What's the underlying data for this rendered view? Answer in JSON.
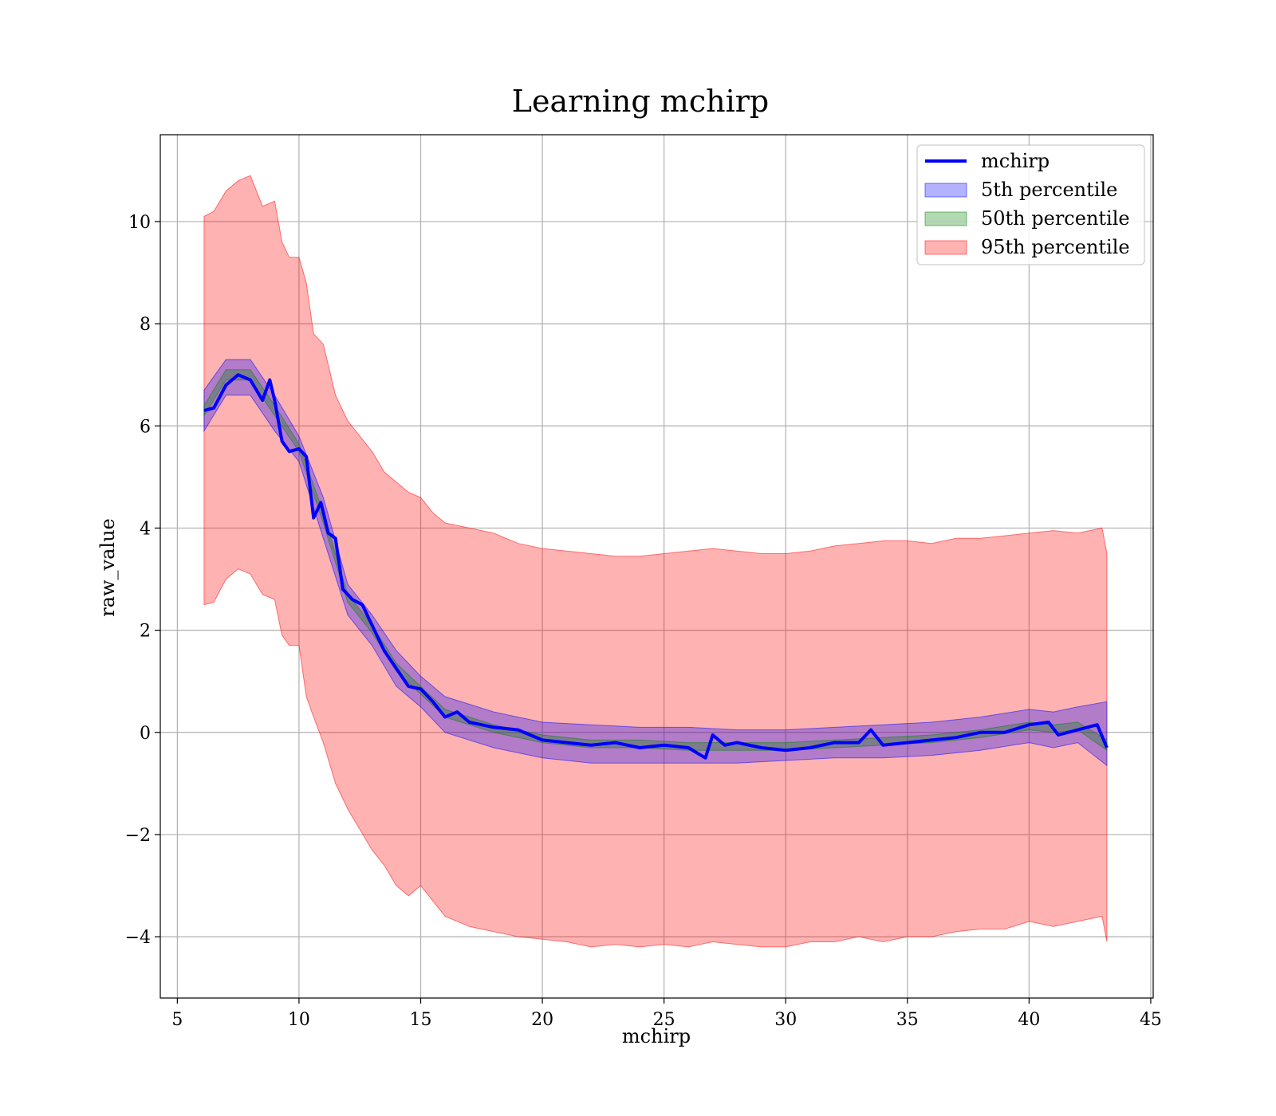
{
  "chart_data": {
    "type": "line",
    "title": "Learning mchirp",
    "xlabel": "mchirp",
    "ylabel": "raw_value",
    "xlim": [
      4.3,
      45.1
    ],
    "ylim": [
      -5.2,
      11.7
    ],
    "xticks": [
      5,
      10,
      15,
      20,
      25,
      30,
      35,
      40,
      45
    ],
    "xtick_labels": [
      "5",
      "10",
      "15",
      "20",
      "25",
      "30",
      "35",
      "40",
      "45"
    ],
    "yticks": [
      -4,
      -2,
      0,
      2,
      4,
      6,
      8,
      10
    ],
    "ytick_labels": [
      "−4",
      "−2",
      "0",
      "2",
      "4",
      "6",
      "8",
      "10"
    ],
    "grid": true,
    "legend": {
      "position": "top-right",
      "entries": [
        "mchirp",
        "5th percentile",
        "50th percentile",
        "95th percentile"
      ]
    },
    "colors": {
      "line": "#0000ff",
      "p5": "#0000ff",
      "p50": "#008000",
      "p95": "#ff0000"
    },
    "series": [
      {
        "name": "mchirp",
        "x": [
          6.1,
          6.5,
          7.0,
          7.5,
          8.0,
          8.5,
          8.8,
          9.0,
          9.3,
          9.6,
          10.0,
          10.3,
          10.6,
          10.9,
          11.2,
          11.5,
          11.8,
          12.2,
          12.6,
          13.0,
          13.5,
          14.0,
          14.5,
          15.0,
          15.5,
          16.0,
          16.5,
          17.0,
          17.5,
          18.0,
          19.0,
          20.0,
          21.0,
          22.0,
          23.0,
          24.0,
          25.0,
          26.0,
          26.7,
          27.0,
          27.5,
          28.0,
          29.0,
          30.0,
          31.0,
          32.0,
          33.0,
          33.5,
          34.0,
          35.0,
          36.0,
          37.0,
          38.0,
          39.0,
          40.0,
          40.8,
          41.2,
          42.0,
          42.8,
          43.2
        ],
        "y": [
          6.3,
          6.35,
          6.8,
          7.0,
          6.9,
          6.5,
          6.9,
          6.5,
          5.7,
          5.5,
          5.55,
          5.4,
          4.2,
          4.5,
          3.9,
          3.8,
          2.8,
          2.6,
          2.5,
          2.1,
          1.6,
          1.25,
          0.9,
          0.85,
          0.6,
          0.3,
          0.4,
          0.2,
          0.15,
          0.1,
          0.05,
          -0.15,
          -0.2,
          -0.25,
          -0.2,
          -0.3,
          -0.25,
          -0.3,
          -0.5,
          -0.05,
          -0.25,
          -0.2,
          -0.3,
          -0.35,
          -0.3,
          -0.2,
          -0.2,
          0.05,
          -0.25,
          -0.2,
          -0.15,
          -0.1,
          0.0,
          0.0,
          0.15,
          0.2,
          -0.05,
          0.05,
          0.15,
          -0.3
        ]
      },
      {
        "name": "5th percentile",
        "x": [
          6.1,
          7.0,
          8.0,
          9.0,
          10.0,
          11.0,
          12.0,
          13.0,
          14.0,
          15.0,
          16.0,
          18.0,
          20.0,
          22.0,
          24.0,
          26.0,
          28.0,
          30.0,
          32.0,
          34.0,
          36.0,
          38.0,
          40.0,
          41.0,
          42.0,
          43.2
        ],
        "lower": [
          5.9,
          6.6,
          6.6,
          5.9,
          5.3,
          3.8,
          2.3,
          1.7,
          0.9,
          0.5,
          0.0,
          -0.3,
          -0.5,
          -0.6,
          -0.6,
          -0.6,
          -0.6,
          -0.55,
          -0.5,
          -0.5,
          -0.45,
          -0.35,
          -0.2,
          -0.3,
          -0.2,
          -0.65
        ],
        "upper": [
          6.7,
          7.3,
          7.3,
          6.6,
          5.8,
          4.6,
          2.9,
          2.3,
          1.6,
          1.1,
          0.7,
          0.4,
          0.2,
          0.15,
          0.1,
          0.1,
          0.05,
          0.05,
          0.1,
          0.15,
          0.2,
          0.3,
          0.45,
          0.4,
          0.5,
          0.6
        ]
      },
      {
        "name": "50th percentile",
        "x": [
          6.1,
          7.0,
          8.0,
          9.0,
          10.0,
          11.0,
          12.0,
          13.0,
          14.0,
          15.0,
          16.0,
          18.0,
          20.0,
          22.0,
          24.0,
          26.0,
          28.0,
          30.0,
          32.0,
          34.0,
          36.0,
          38.0,
          40.0,
          41.0,
          42.0,
          43.2
        ],
        "lower": [
          6.2,
          6.9,
          6.9,
          6.2,
          5.5,
          4.1,
          2.55,
          1.95,
          1.2,
          0.75,
          0.3,
          0.0,
          -0.2,
          -0.3,
          -0.3,
          -0.35,
          -0.35,
          -0.35,
          -0.3,
          -0.25,
          -0.2,
          -0.1,
          0.05,
          0.0,
          0.05,
          -0.35
        ],
        "upper": [
          6.4,
          7.1,
          7.1,
          6.4,
          5.65,
          4.3,
          2.7,
          2.1,
          1.35,
          0.9,
          0.45,
          0.15,
          -0.05,
          -0.15,
          -0.15,
          -0.2,
          -0.2,
          -0.2,
          -0.15,
          -0.1,
          -0.05,
          0.05,
          0.2,
          0.15,
          0.2,
          -0.15
        ]
      },
      {
        "name": "95th percentile",
        "x": [
          6.1,
          6.5,
          7.0,
          7.5,
          8.0,
          8.5,
          9.0,
          9.3,
          9.6,
          10.0,
          10.3,
          10.6,
          11.0,
          11.5,
          12.0,
          12.5,
          13.0,
          13.5,
          14.0,
          14.5,
          15.0,
          15.5,
          16.0,
          17.0,
          18.0,
          19.0,
          20.0,
          21.0,
          22.0,
          23.0,
          24.0,
          25.0,
          26.0,
          27.0,
          28.0,
          29.0,
          30.0,
          31.0,
          32.0,
          33.0,
          34.0,
          35.0,
          36.0,
          37.0,
          38.0,
          39.0,
          40.0,
          41.0,
          42.0,
          43.0,
          43.2
        ],
        "lower": [
          2.5,
          2.55,
          3.0,
          3.2,
          3.1,
          2.7,
          2.6,
          1.9,
          1.7,
          1.7,
          0.7,
          0.3,
          -0.2,
          -1.0,
          -1.5,
          -1.9,
          -2.3,
          -2.6,
          -3.0,
          -3.2,
          -3.0,
          -3.3,
          -3.6,
          -3.8,
          -3.9,
          -4.0,
          -4.05,
          -4.1,
          -4.2,
          -4.15,
          -4.2,
          -4.15,
          -4.2,
          -4.1,
          -4.15,
          -4.2,
          -4.2,
          -4.1,
          -4.1,
          -4.0,
          -4.1,
          -4.0,
          -4.0,
          -3.9,
          -3.85,
          -3.85,
          -3.7,
          -3.8,
          -3.7,
          -3.6,
          -4.1
        ],
        "upper": [
          10.1,
          10.2,
          10.6,
          10.8,
          10.9,
          10.3,
          10.4,
          9.6,
          9.3,
          9.3,
          8.8,
          7.8,
          7.6,
          6.6,
          6.1,
          5.8,
          5.5,
          5.1,
          4.9,
          4.7,
          4.6,
          4.3,
          4.1,
          4.0,
          3.9,
          3.7,
          3.6,
          3.55,
          3.5,
          3.45,
          3.45,
          3.5,
          3.55,
          3.6,
          3.55,
          3.5,
          3.5,
          3.55,
          3.65,
          3.7,
          3.75,
          3.75,
          3.7,
          3.8,
          3.8,
          3.85,
          3.9,
          3.95,
          3.9,
          4.0,
          3.5
        ]
      }
    ]
  }
}
